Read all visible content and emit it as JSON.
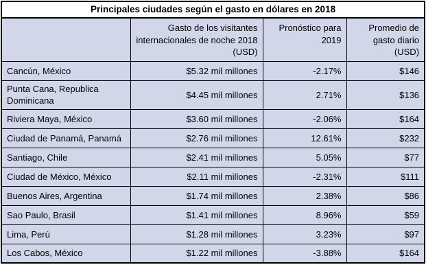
{
  "title": "Principales ciudades según el gasto en dólares en 2018",
  "colors": {
    "cell_bg": "#d1d7e9",
    "title_bg": "#ffffff",
    "border": "#000000",
    "text": "#000000"
  },
  "table": {
    "columns": [
      {
        "label": ""
      },
      {
        "label": "Gasto de los visitantes internacionales de noche 2018 (USD)"
      },
      {
        "label": "Pronóstico para 2019"
      },
      {
        "label": "Promedio de gasto diario (USD)"
      }
    ],
    "rows": [
      {
        "city": "Cancún, México",
        "spend": "$5.32 mil millones",
        "forecast": "-2.17%",
        "daily": "$146"
      },
      {
        "city": "Punta Cana, Republica Dominicana",
        "spend": "$4.45 mil millones",
        "forecast": "2.71%",
        "daily": "$136"
      },
      {
        "city": "Riviera Maya, México",
        "spend": "$3.60 mil millones",
        "forecast": "-2.06%",
        "daily": "$164"
      },
      {
        "city": "Ciudad de Panamá, Panamá",
        "spend": "$2.76 mil millones",
        "forecast": "12.61%",
        "daily": "$232"
      },
      {
        "city": "Santiago, Chile",
        "spend": "$2.41 mil millones",
        "forecast": "5.05%",
        "daily": "$77"
      },
      {
        "city": "Ciudad de México, México",
        "spend": "$2.11 mil millones",
        "forecast": "-2.31%",
        "daily": "$111"
      },
      {
        "city": "Buenos Aires, Argentina",
        "spend": "$1.74 mil millones",
        "forecast": "2.38%",
        "daily": "$86"
      },
      {
        "city": "Sao Paulo, Brasil",
        "spend": "$1.41 mil millones",
        "forecast": "8.96%",
        "daily": "$59"
      },
      {
        "city": "Lima, Perú",
        "spend": "$1.28 mil millones",
        "forecast": "3.23%",
        "daily": "$97"
      },
      {
        "city": "Los Cabos, México",
        "spend": "$1.22 mil millones",
        "forecast": "-3.88%",
        "daily": "$164"
      }
    ]
  }
}
